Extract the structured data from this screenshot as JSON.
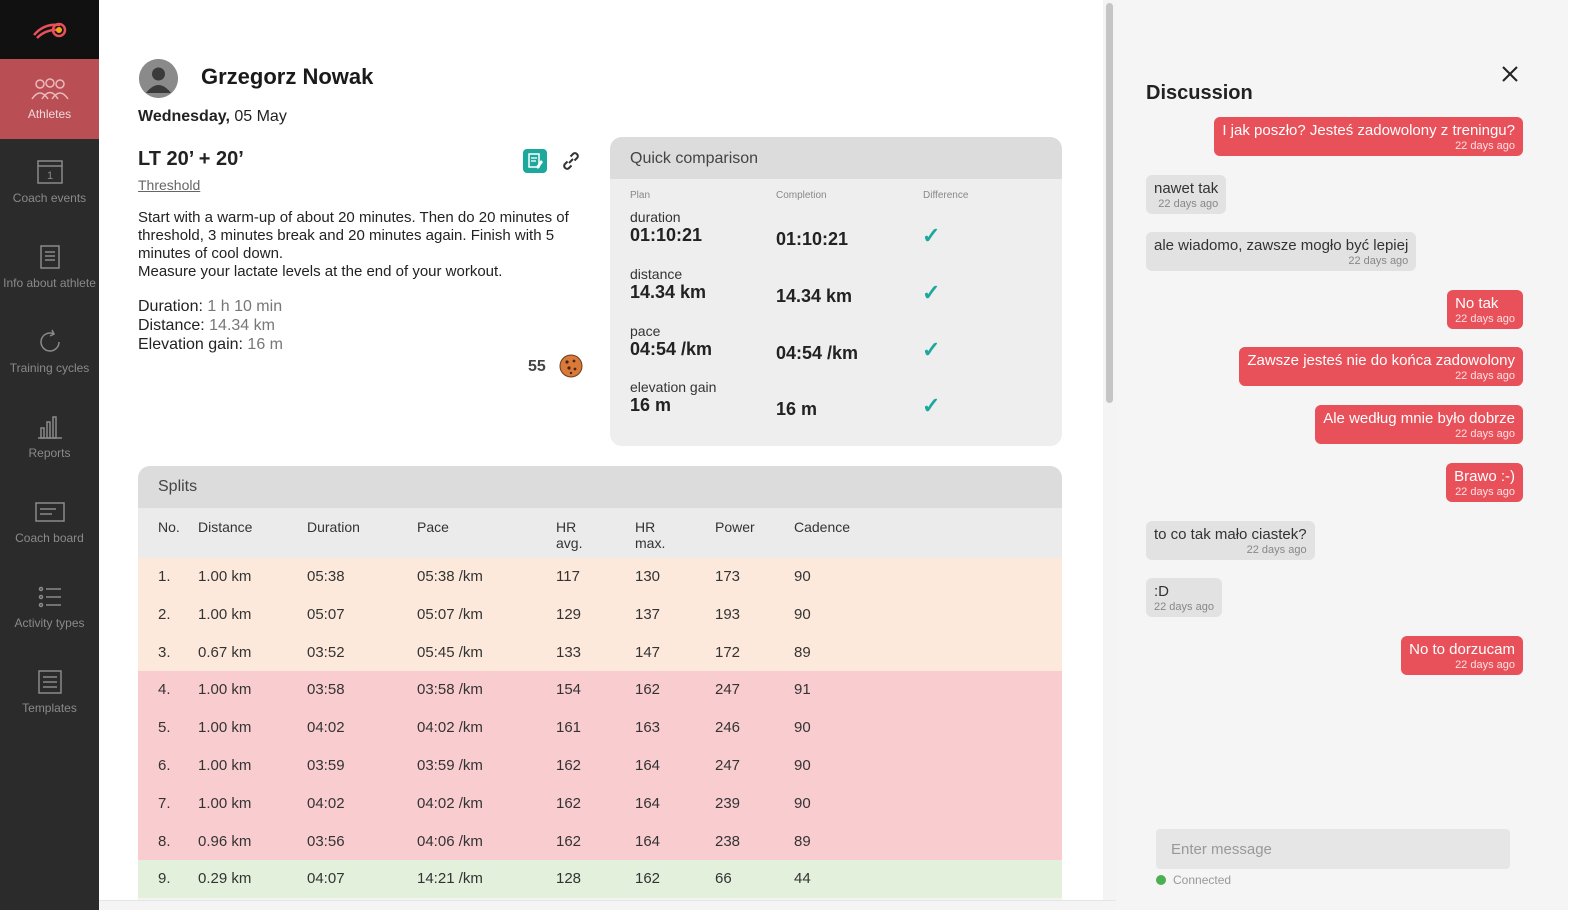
{
  "sidebar": {
    "items": [
      {
        "label": "Athletes",
        "icon": "athletes-icon"
      },
      {
        "label": "Coach events",
        "icon": "calendar-icon"
      },
      {
        "label": "Info about athlete",
        "icon": "notebook-icon"
      },
      {
        "label": "Training cycles",
        "icon": "refresh-icon"
      },
      {
        "label": "Reports",
        "icon": "bar-chart-icon"
      },
      {
        "label": "Coach board",
        "icon": "board-icon"
      },
      {
        "label": "Activity types",
        "icon": "list-icon"
      },
      {
        "label": "Templates",
        "icon": "templates-icon"
      }
    ],
    "calendar_day": "1"
  },
  "athlete": {
    "name": "Grzegorz Nowak",
    "weekday": "Wednesday,",
    "date": "05 May"
  },
  "workout": {
    "title": "LT 20’ + 20’",
    "type": "Threshold",
    "description": "Start with a warm-up of about 20 minutes. Then do 20 minutes of threshold, 3 minutes break and 20 minutes again. Finish with 5 minutes of cool down.",
    "description2": "Measure your lactate levels at the end of your workout.",
    "duration_label": "Duration:",
    "duration_value": "1 h 10 min",
    "distance_label": "Distance:",
    "distance_value": "14.34 km",
    "elevation_label": "Elevation gain:",
    "elevation_value": "16 m",
    "score": "55"
  },
  "quick_comparison": {
    "title": "Quick comparison",
    "col_plan": "Plan",
    "col_completion": "Completion",
    "col_difference": "Difference",
    "rows": [
      {
        "label": "duration",
        "plan": "01:10:21",
        "completion": "01:10:21",
        "check": "✓"
      },
      {
        "label": "distance",
        "plan": "14.34 km",
        "completion": "14.34 km",
        "check": "✓"
      },
      {
        "label": "pace",
        "plan": "04:54 /km",
        "completion": "04:54 /km",
        "check": "✓"
      },
      {
        "label": "elevation gain",
        "plan": "16 m",
        "completion": "16 m",
        "check": "✓"
      }
    ]
  },
  "splits": {
    "title": "Splits",
    "headers": {
      "no": "No.",
      "distance": "Distance",
      "duration": "Duration",
      "pace": "Pace",
      "hr_avg_1": "HR",
      "hr_avg_2": "avg.",
      "hr_max_1": "HR",
      "hr_max_2": "max.",
      "power": "Power",
      "cadence": "Cadence"
    },
    "rows": [
      {
        "no": "1.",
        "distance": "1.00 km",
        "duration": "05:38",
        "pace": "05:38 /km",
        "hr_avg": "117",
        "hr_max": "130",
        "power": "173",
        "cadence": "90",
        "zone": "warm"
      },
      {
        "no": "2.",
        "distance": "1.00 km",
        "duration": "05:07",
        "pace": "05:07 /km",
        "hr_avg": "129",
        "hr_max": "137",
        "power": "193",
        "cadence": "90",
        "zone": "warm"
      },
      {
        "no": "3.",
        "distance": "0.67 km",
        "duration": "03:52",
        "pace": "05:45 /km",
        "hr_avg": "133",
        "hr_max": "147",
        "power": "172",
        "cadence": "89",
        "zone": "warm"
      },
      {
        "no": "4.",
        "distance": "1.00 km",
        "duration": "03:58",
        "pace": "03:58 /km",
        "hr_avg": "154",
        "hr_max": "162",
        "power": "247",
        "cadence": "91",
        "zone": "hard"
      },
      {
        "no": "5.",
        "distance": "1.00 km",
        "duration": "04:02",
        "pace": "04:02 /km",
        "hr_avg": "161",
        "hr_max": "163",
        "power": "246",
        "cadence": "90",
        "zone": "hard"
      },
      {
        "no": "6.",
        "distance": "1.00 km",
        "duration": "03:59",
        "pace": "03:59 /km",
        "hr_avg": "162",
        "hr_max": "164",
        "power": "247",
        "cadence": "90",
        "zone": "hard"
      },
      {
        "no": "7.",
        "distance": "1.00 km",
        "duration": "04:02",
        "pace": "04:02 /km",
        "hr_avg": "162",
        "hr_max": "164",
        "power": "239",
        "cadence": "90",
        "zone": "hard"
      },
      {
        "no": "8.",
        "distance": "0.96 km",
        "duration": "03:56",
        "pace": "04:06 /km",
        "hr_avg": "162",
        "hr_max": "164",
        "power": "238",
        "cadence": "89",
        "zone": "hard"
      },
      {
        "no": "9.",
        "distance": "0.29 km",
        "duration": "04:07",
        "pace": "14:21 /km",
        "hr_avg": "128",
        "hr_max": "162",
        "power": "66",
        "cadence": "44",
        "zone": "cool"
      }
    ]
  },
  "discussion": {
    "title": "Discussion",
    "messages": [
      {
        "dir": "out",
        "text": "I jak poszło? Jesteś zadowolony z treningu?",
        "time": "22 days ago"
      },
      {
        "dir": "in",
        "text": "nawet tak",
        "time": "22 days ago"
      },
      {
        "dir": "in",
        "text": "ale wiadomo, zawsze mogło być lepiej",
        "time": "22 days ago"
      },
      {
        "dir": "out",
        "text": "No tak",
        "time": "22 days ago"
      },
      {
        "dir": "out",
        "text": "Zawsze jesteś nie do końca zadowolony",
        "time": "22 days ago"
      },
      {
        "dir": "out",
        "text": "Ale według mnie było dobrze",
        "time": "22 days ago"
      },
      {
        "dir": "out",
        "text": "Brawo :-)",
        "time": "22 days ago"
      },
      {
        "dir": "in",
        "text": "to co tak mało ciastek?",
        "time": "22 days ago"
      },
      {
        "dir": "in",
        "text": ":D",
        "time": "22 days ago"
      },
      {
        "dir": "out",
        "text": "No to dorzucam",
        "time": "22 days ago"
      }
    ],
    "input_placeholder": "Enter message",
    "status": "Connected"
  },
  "colors": {
    "accent": "#e8505a",
    "sidebar_active": "#b94f55",
    "check": "#1da89e",
    "status_online": "#4caf50"
  }
}
